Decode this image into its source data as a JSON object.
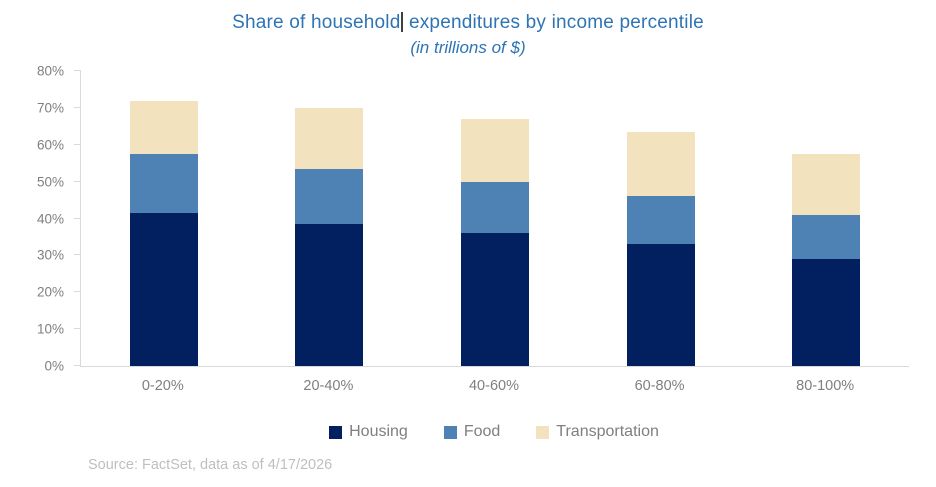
{
  "title": {
    "before_caret": "Share of household",
    "after_caret": "expenditures by income percentile",
    "subtitle": "(in trillions of $)"
  },
  "source_note": "Source: FactSet, data as of 4/17/2026",
  "colors": {
    "title_text": "#2e74b5",
    "axis_line": "#d9d9d9",
    "tick_label_text": "#7f7f7f",
    "legend_text": "#7f7f7f",
    "source_text": "#bfbfbf",
    "housing": "#022060",
    "food": "#4e82b4",
    "transportation": "#f2e2bd"
  },
  "chart_data": {
    "type": "bar",
    "stacked": true,
    "title": "Share of household expenditures by income percentile",
    "subtitle": "(in trillions of $)",
    "categories": [
      "0-20%",
      "20-40%",
      "40-60%",
      "60-80%",
      "80-100%"
    ],
    "series": [
      {
        "name": "Housing",
        "color": "#022060",
        "values": [
          41.5,
          38.5,
          36.0,
          33.0,
          29.0
        ]
      },
      {
        "name": "Food",
        "color": "#4e82b4",
        "values": [
          16.0,
          15.0,
          14.0,
          13.0,
          12.0
        ]
      },
      {
        "name": "Transportation",
        "color": "#f2e2bd",
        "values": [
          14.5,
          16.5,
          17.0,
          17.5,
          16.5
        ]
      }
    ],
    "stack_totals": [
      72.0,
      70.0,
      67.0,
      63.5,
      57.5
    ],
    "xlabel": "",
    "ylabel": "",
    "ylim": [
      0,
      80
    ],
    "ytick_step": 10,
    "ytick_labels": [
      "0%",
      "10%",
      "20%",
      "30%",
      "40%",
      "50%",
      "60%",
      "70%",
      "80%"
    ],
    "legend_position": "bottom",
    "grid": false
  }
}
